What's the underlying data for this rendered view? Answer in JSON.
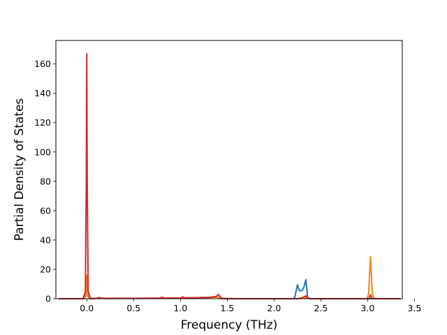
{
  "chart_data": {
    "type": "line",
    "title": "",
    "xlabel": "Frequency (THz)",
    "ylabel": "Partial Density of States",
    "xlim": [
      -0.33,
      3.37
    ],
    "ylim": [
      0,
      176
    ],
    "x_ticks": [
      0.0,
      0.5,
      1.0,
      1.5,
      2.0,
      2.5,
      3.0,
      3.5
    ],
    "x_tick_labels": [
      "0.0",
      "0.5",
      "1.0",
      "1.5",
      "2.0",
      "2.5",
      "3.0",
      "3.5"
    ],
    "y_ticks": [
      0,
      20,
      40,
      60,
      80,
      100,
      120,
      140,
      160
    ],
    "y_tick_labels": [
      "0",
      "20",
      "40",
      "60",
      "80",
      "100",
      "120",
      "140",
      "160"
    ],
    "grid": false,
    "legend": "none",
    "series": [
      {
        "color": "#1f77b4",
        "points": [
          [
            -0.3,
            0
          ],
          [
            -0.03,
            0
          ],
          [
            -0.01,
            2
          ],
          [
            0.0,
            15
          ],
          [
            0.01,
            2
          ],
          [
            0.03,
            0
          ],
          [
            0.12,
            0.3
          ],
          [
            0.2,
            0.2
          ],
          [
            0.78,
            0.3
          ],
          [
            1.0,
            0.4
          ],
          [
            1.4,
            1.0
          ],
          [
            1.43,
            0.2
          ],
          [
            1.6,
            0
          ],
          [
            2.2,
            0
          ],
          [
            2.22,
            0.5
          ],
          [
            2.25,
            9.5
          ],
          [
            2.27,
            5.5
          ],
          [
            2.3,
            5.5
          ],
          [
            2.32,
            8
          ],
          [
            2.34,
            13
          ],
          [
            2.36,
            0.5
          ],
          [
            2.4,
            0
          ],
          [
            3.0,
            0
          ],
          [
            3.35,
            0
          ]
        ]
      },
      {
        "color": "#ff7f0e",
        "points": [
          [
            -0.3,
            0
          ],
          [
            -0.03,
            0
          ],
          [
            -0.01,
            3
          ],
          [
            0.0,
            16
          ],
          [
            0.01,
            3
          ],
          [
            0.03,
            0
          ],
          [
            0.12,
            0.3
          ],
          [
            0.2,
            0.2
          ],
          [
            0.78,
            0.3
          ],
          [
            1.0,
            0.4
          ],
          [
            1.4,
            1.0
          ],
          [
            1.43,
            0.2
          ],
          [
            1.6,
            0
          ],
          [
            2.25,
            0
          ],
          [
            2.32,
            1.0
          ],
          [
            2.34,
            0.5
          ],
          [
            2.4,
            0
          ],
          [
            2.99,
            0
          ],
          [
            3.01,
            3
          ],
          [
            3.03,
            28.5
          ],
          [
            3.05,
            3
          ],
          [
            3.07,
            0
          ],
          [
            3.35,
            0
          ]
        ]
      },
      {
        "color": "#d62728",
        "points": [
          [
            -0.3,
            0
          ],
          [
            -0.04,
            0
          ],
          [
            -0.015,
            5
          ],
          [
            -0.005,
            80
          ],
          [
            0.0,
            167
          ],
          [
            0.005,
            80
          ],
          [
            0.015,
            5
          ],
          [
            0.04,
            0
          ],
          [
            0.1,
            0.2
          ],
          [
            0.13,
            0.8
          ],
          [
            0.16,
            0.3
          ],
          [
            0.5,
            0.3
          ],
          [
            0.78,
            0.4
          ],
          [
            0.8,
            1.0
          ],
          [
            0.83,
            0.4
          ],
          [
            1.0,
            0.5
          ],
          [
            1.02,
            1.2
          ],
          [
            1.05,
            0.6
          ],
          [
            1.3,
            0.9
          ],
          [
            1.38,
            1.5
          ],
          [
            1.41,
            2.8
          ],
          [
            1.43,
            0.8
          ],
          [
            1.46,
            0
          ],
          [
            2.25,
            0
          ],
          [
            2.3,
            0.5
          ],
          [
            2.34,
            2.0
          ],
          [
            2.36,
            0.3
          ],
          [
            2.4,
            0
          ],
          [
            3.01,
            0
          ],
          [
            3.03,
            2.5
          ],
          [
            3.05,
            0
          ],
          [
            3.35,
            0
          ]
        ]
      }
    ]
  }
}
